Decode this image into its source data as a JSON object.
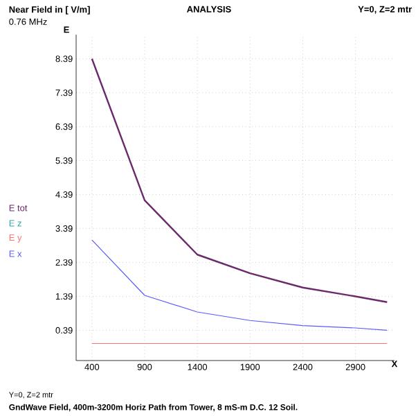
{
  "chart_data": {
    "type": "line",
    "title": "ANALYSIS",
    "subtitle": "0.76 MHz",
    "xlabel": "X",
    "annotations": [
      "E",
      "Y=0, Z=2 mtr",
      "Y=0, Z=2 mtr",
      "GndWave Field, 400m-3200m Horiz Path from Tower, 8 mS-m D.C. 12 Soil.",
      "Near Field in [ V/m]"
    ],
    "x": [
      400,
      900,
      1400,
      1900,
      2400,
      2900,
      3200
    ],
    "series": [
      {
        "name": "E tot",
        "color": "#6b2a6b",
        "values": [
          8.39,
          4.22,
          2.62,
          2.07,
          1.65,
          1.39,
          1.22
        ]
      },
      {
        "name": "E z",
        "color": "#30a8a8",
        "values": [
          null,
          null,
          null,
          null,
          null,
          null,
          null
        ]
      },
      {
        "name": "E y",
        "color": "#ff7070",
        "values": [
          0,
          0,
          0,
          0,
          0,
          0,
          0
        ]
      },
      {
        "name": "E x",
        "color": "#5a5aff",
        "values": [
          3.05,
          1.42,
          0.93,
          0.68,
          0.53,
          0.46,
          0.39
        ]
      }
    ],
    "xlim": [
      250,
      3270
    ],
    "ylim": [
      -0.5,
      9.1
    ],
    "xticks": [
      400,
      900,
      1400,
      1900,
      2400,
      2900
    ],
    "yticks": [
      0.39,
      1.39,
      2.39,
      3.39,
      4.39,
      5.39,
      6.39,
      7.39,
      8.39
    ],
    "grid": true,
    "legend": "left",
    "marker": "none",
    "line_style": "solid"
  }
}
